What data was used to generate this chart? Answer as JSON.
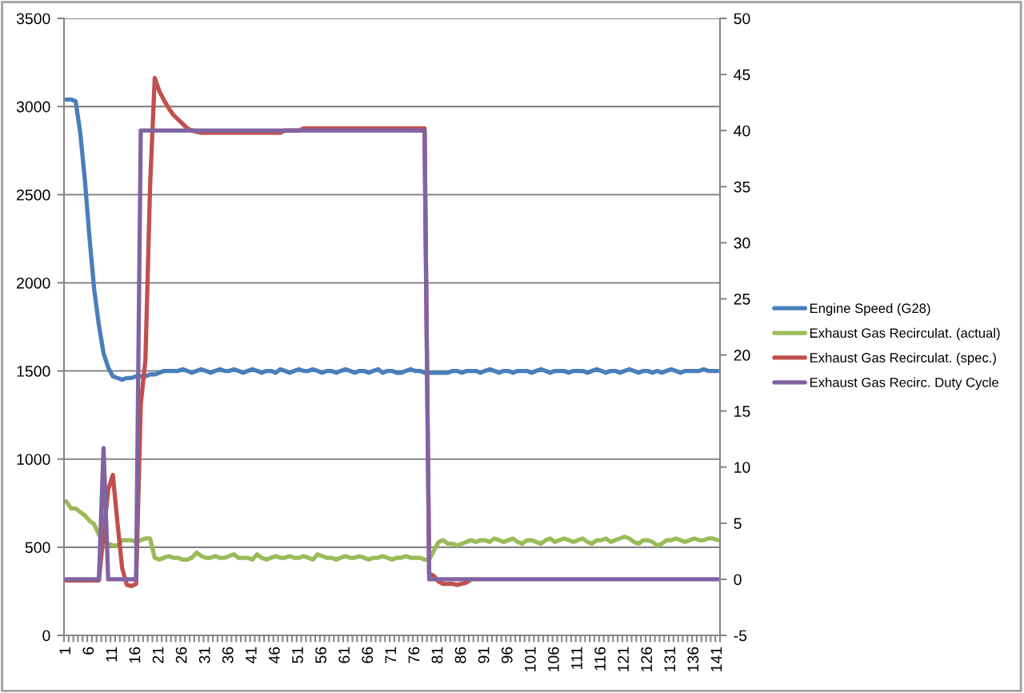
{
  "chart_data": {
    "type": "line",
    "categories": [
      "1",
      null,
      null,
      null,
      null,
      "6",
      null,
      null,
      null,
      null,
      "11",
      null,
      null,
      null,
      null,
      "16",
      null,
      null,
      null,
      null,
      "21",
      null,
      null,
      null,
      null,
      "26",
      null,
      null,
      null,
      null,
      "31",
      null,
      null,
      null,
      null,
      "36",
      null,
      null,
      null,
      null,
      "41",
      null,
      null,
      null,
      null,
      "46",
      null,
      null,
      null,
      null,
      "51",
      null,
      null,
      null,
      null,
      "56",
      null,
      null,
      null,
      null,
      "61",
      null,
      null,
      null,
      null,
      "66",
      null,
      null,
      null,
      null,
      "71",
      null,
      null,
      null,
      null,
      "76",
      null,
      null,
      null,
      null,
      "81",
      null,
      null,
      null,
      null,
      "86",
      null,
      null,
      null,
      null,
      "91",
      null,
      null,
      null,
      null,
      "96",
      null,
      null,
      null,
      null,
      "101",
      null,
      null,
      null,
      null,
      "106",
      null,
      null,
      null,
      null,
      "111",
      null,
      null,
      null,
      null,
      "116",
      null,
      null,
      null,
      null,
      "121",
      null,
      null,
      null,
      null,
      "126",
      null,
      null,
      null,
      null,
      "131",
      null,
      null,
      null,
      null,
      "136",
      null,
      null,
      null,
      null,
      "141"
    ],
    "series": [
      {
        "name": "Engine Speed (G28)",
        "color": "#4a7ebb",
        "values": [
          3040,
          3040,
          3030,
          2850,
          2580,
          2250,
          1960,
          1760,
          1600,
          1520,
          1470,
          1460,
          1450,
          1460,
          1460,
          1470,
          1470,
          1470,
          1480,
          1480,
          1490,
          1500,
          1500,
          1500,
          1500,
          1510,
          1500,
          1490,
          1500,
          1510,
          1500,
          1490,
          1500,
          1510,
          1500,
          1500,
          1510,
          1500,
          1490,
          1500,
          1510,
          1500,
          1490,
          1500,
          1500,
          1490,
          1510,
          1500,
          1490,
          1500,
          1510,
          1500,
          1500,
          1510,
          1500,
          1490,
          1500,
          1500,
          1490,
          1500,
          1510,
          1500,
          1490,
          1500,
          1500,
          1490,
          1500,
          1510,
          1490,
          1500,
          1500,
          1490,
          1490,
          1500,
          1510,
          1500,
          1500,
          1490,
          1490,
          1490,
          1490,
          1490,
          1490,
          1500,
          1500,
          1490,
          1500,
          1500,
          1500,
          1490,
          1500,
          1510,
          1500,
          1490,
          1500,
          1500,
          1490,
          1500,
          1500,
          1500,
          1490,
          1500,
          1510,
          1500,
          1490,
          1500,
          1500,
          1500,
          1490,
          1500,
          1500,
          1500,
          1490,
          1500,
          1510,
          1500,
          1490,
          1500,
          1500,
          1490,
          1500,
          1510,
          1500,
          1490,
          1500,
          1500,
          1490,
          1500,
          1490,
          1500,
          1510,
          1500,
          1490,
          1500,
          1500,
          1500,
          1500,
          1510,
          1500,
          1500,
          1500
        ]
      },
      {
        "name": "Exhaust Gas Recirculat. (actual)",
        "color": "#9bbb59",
        "values": [
          760,
          720,
          720,
          700,
          680,
          650,
          630,
          570,
          540,
          520,
          510,
          510,
          540,
          540,
          540,
          530,
          540,
          550,
          550,
          440,
          430,
          440,
          450,
          440,
          440,
          430,
          430,
          440,
          470,
          450,
          440,
          440,
          450,
          440,
          440,
          450,
          460,
          440,
          440,
          440,
          430,
          460,
          440,
          430,
          440,
          450,
          440,
          440,
          450,
          440,
          440,
          450,
          440,
          430,
          460,
          450,
          440,
          440,
          430,
          440,
          450,
          440,
          440,
          450,
          440,
          430,
          440,
          440,
          450,
          440,
          430,
          440,
          440,
          450,
          440,
          440,
          440,
          430,
          430,
          480,
          530,
          540,
          520,
          520,
          510,
          520,
          530,
          540,
          530,
          540,
          540,
          530,
          550,
          540,
          530,
          540,
          550,
          530,
          520,
          540,
          540,
          530,
          520,
          540,
          550,
          530,
          540,
          550,
          540,
          530,
          540,
          550,
          530,
          520,
          540,
          540,
          550,
          530,
          540,
          550,
          560,
          550,
          530,
          520,
          540,
          540,
          530,
          510,
          520,
          540,
          540,
          550,
          540,
          530,
          540,
          550,
          540,
          540,
          550,
          550,
          540
        ]
      },
      {
        "name": "Exhaust Gas Recirculat. (spec.)",
        "color": "#c0504d",
        "axis": "y2",
        "values": [
          -0.1,
          -0.1,
          -0.1,
          -0.1,
          -0.1,
          -0.1,
          -0.1,
          -0.1,
          4.0,
          8.0,
          9.3,
          5.0,
          1.0,
          -0.5,
          -0.6,
          -0.4,
          15.6,
          19.5,
          35.0,
          44.7,
          43.5,
          42.7,
          42.0,
          41.4,
          41.0,
          40.6,
          40.2,
          40.0,
          39.9,
          39.8,
          39.8,
          39.8,
          39.8,
          39.8,
          39.8,
          39.8,
          39.8,
          39.8,
          39.8,
          39.8,
          39.8,
          39.8,
          39.8,
          39.8,
          39.8,
          39.8,
          39.8,
          40.0,
          40.0,
          40.0,
          40.0,
          40.2,
          40.2,
          40.2,
          40.2,
          40.2,
          40.2,
          40.2,
          40.2,
          40.2,
          40.2,
          40.2,
          40.2,
          40.2,
          40.2,
          40.2,
          40.2,
          40.2,
          40.2,
          40.2,
          40.2,
          40.2,
          40.2,
          40.2,
          40.2,
          40.2,
          40.2,
          40.2,
          0.5,
          0.3,
          -0.2,
          -0.4,
          -0.4,
          -0.4,
          -0.5,
          -0.4,
          -0.3,
          0,
          null,
          null,
          null,
          null,
          null,
          null,
          null,
          null,
          null,
          null,
          null,
          null,
          null,
          null,
          null,
          null,
          null,
          null,
          null,
          null,
          null,
          null,
          null,
          null,
          null,
          null,
          null,
          null,
          null,
          null,
          null,
          null,
          null,
          null,
          null,
          null,
          null,
          null,
          null,
          null,
          null,
          null,
          null,
          null,
          null,
          null,
          null,
          null,
          null,
          null,
          null,
          null,
          null
        ]
      },
      {
        "name": "Exhaust Gas Recirc. Duty Cycle",
        "color": "#8064a2",
        "axis": "y2",
        "values": [
          0,
          0,
          0,
          0,
          0,
          0,
          0,
          0,
          11.7,
          0,
          0,
          0,
          0,
          0,
          0,
          0,
          40,
          40,
          40,
          40,
          40,
          40,
          40,
          40,
          40,
          40,
          40,
          40,
          40,
          40,
          40,
          40,
          40,
          40,
          40,
          40,
          40,
          40,
          40,
          40,
          40,
          40,
          40,
          40,
          40,
          40,
          40,
          40,
          40,
          40,
          40,
          40,
          40,
          40,
          40,
          40,
          40,
          40,
          40,
          40,
          40,
          40,
          40,
          40,
          40,
          40,
          40,
          40,
          40,
          40,
          40,
          40,
          40,
          40,
          40,
          40,
          40,
          40,
          0,
          0,
          0,
          0,
          0,
          0,
          0,
          0,
          0,
          0,
          0,
          0,
          0,
          0,
          0,
          0,
          0,
          0,
          0,
          0,
          0,
          0,
          0,
          0,
          0,
          0,
          0,
          0,
          0,
          0,
          0,
          0,
          0,
          0,
          0,
          0,
          0,
          0,
          0,
          0,
          0,
          0,
          0,
          0,
          0,
          0,
          0,
          0,
          0,
          0,
          0,
          0,
          0,
          0,
          0,
          0,
          0,
          0,
          0,
          0,
          0,
          0,
          0
        ]
      }
    ],
    "ylim": [
      0,
      3500
    ],
    "yticks": [
      0,
      500,
      1000,
      1500,
      2000,
      2500,
      3000,
      3500
    ],
    "y2lim": [
      -5,
      50
    ],
    "y2ticks": [
      -5,
      0,
      5,
      10,
      15,
      20,
      25,
      30,
      35,
      40,
      45,
      50
    ],
    "grid": "y",
    "legend": "right",
    "line_style": "solid"
  }
}
